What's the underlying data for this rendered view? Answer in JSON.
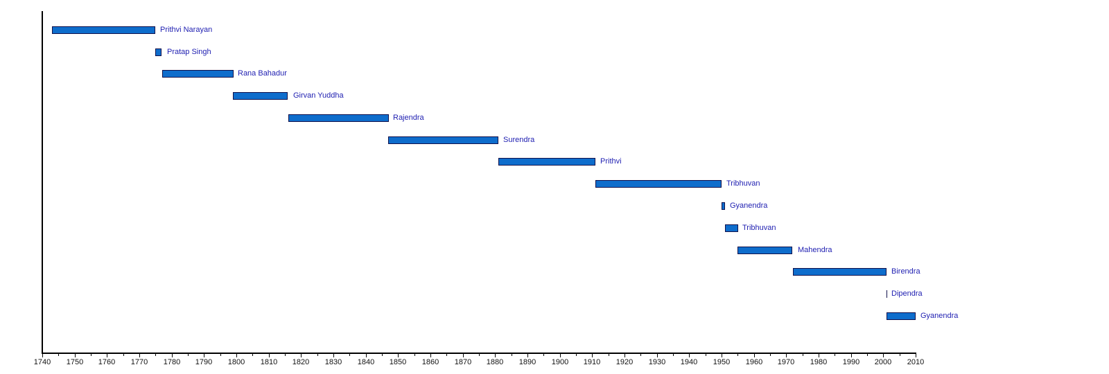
{
  "chart_data": {
    "type": "bar",
    "subtype": "gantt-timeline",
    "title": "",
    "xlabel": "",
    "ylabel": "",
    "legend": "none",
    "grid": false,
    "axis": {
      "min": 1740,
      "max": 2010,
      "major_step": 10,
      "minor_step": 5,
      "tick_labels": [
        "1740",
        "1750",
        "1760",
        "1770",
        "1780",
        "1790",
        "1800",
        "1810",
        "1820",
        "1830",
        "1840",
        "1850",
        "1860",
        "1870",
        "1880",
        "1890",
        "1900",
        "1910",
        "1920",
        "1930",
        "1940",
        "1950",
        "1960",
        "1970",
        "1980",
        "1990",
        "2000",
        "2010"
      ]
    },
    "rows": [
      {
        "label": "Prithvi Narayan",
        "start": 1743,
        "end": 1775
      },
      {
        "label": "Pratap Singh",
        "start": 1775,
        "end": 1777
      },
      {
        "label": "Rana Bahadur",
        "start": 1777,
        "end": 1799
      },
      {
        "label": "Girvan Yuddha",
        "start": 1799,
        "end": 1816
      },
      {
        "label": "Rajendra",
        "start": 1816,
        "end": 1847
      },
      {
        "label": "Surendra",
        "start": 1847,
        "end": 1881
      },
      {
        "label": "Prithvi",
        "start": 1881,
        "end": 1911
      },
      {
        "label": "Tribhuvan",
        "start": 1911,
        "end": 1950
      },
      {
        "label": "Gyanendra",
        "start": 1950,
        "end": 1951
      },
      {
        "label": "Tribhuvan",
        "start": 1951,
        "end": 1955
      },
      {
        "label": "Mahendra",
        "start": 1955,
        "end": 1972
      },
      {
        "label": "Birendra",
        "start": 1972,
        "end": 2001
      },
      {
        "label": "Dipendra",
        "start": 2001,
        "end": 2001
      },
      {
        "label": "Gyanendra",
        "start": 2001,
        "end": 2010
      }
    ],
    "colors": {
      "background": "#FFFFFF",
      "bar_fill": "#0E6DCC",
      "bar_border": "#10104A",
      "label_text": "#2121B2",
      "axis_line": "#000000",
      "tick_text": "#111111"
    }
  }
}
